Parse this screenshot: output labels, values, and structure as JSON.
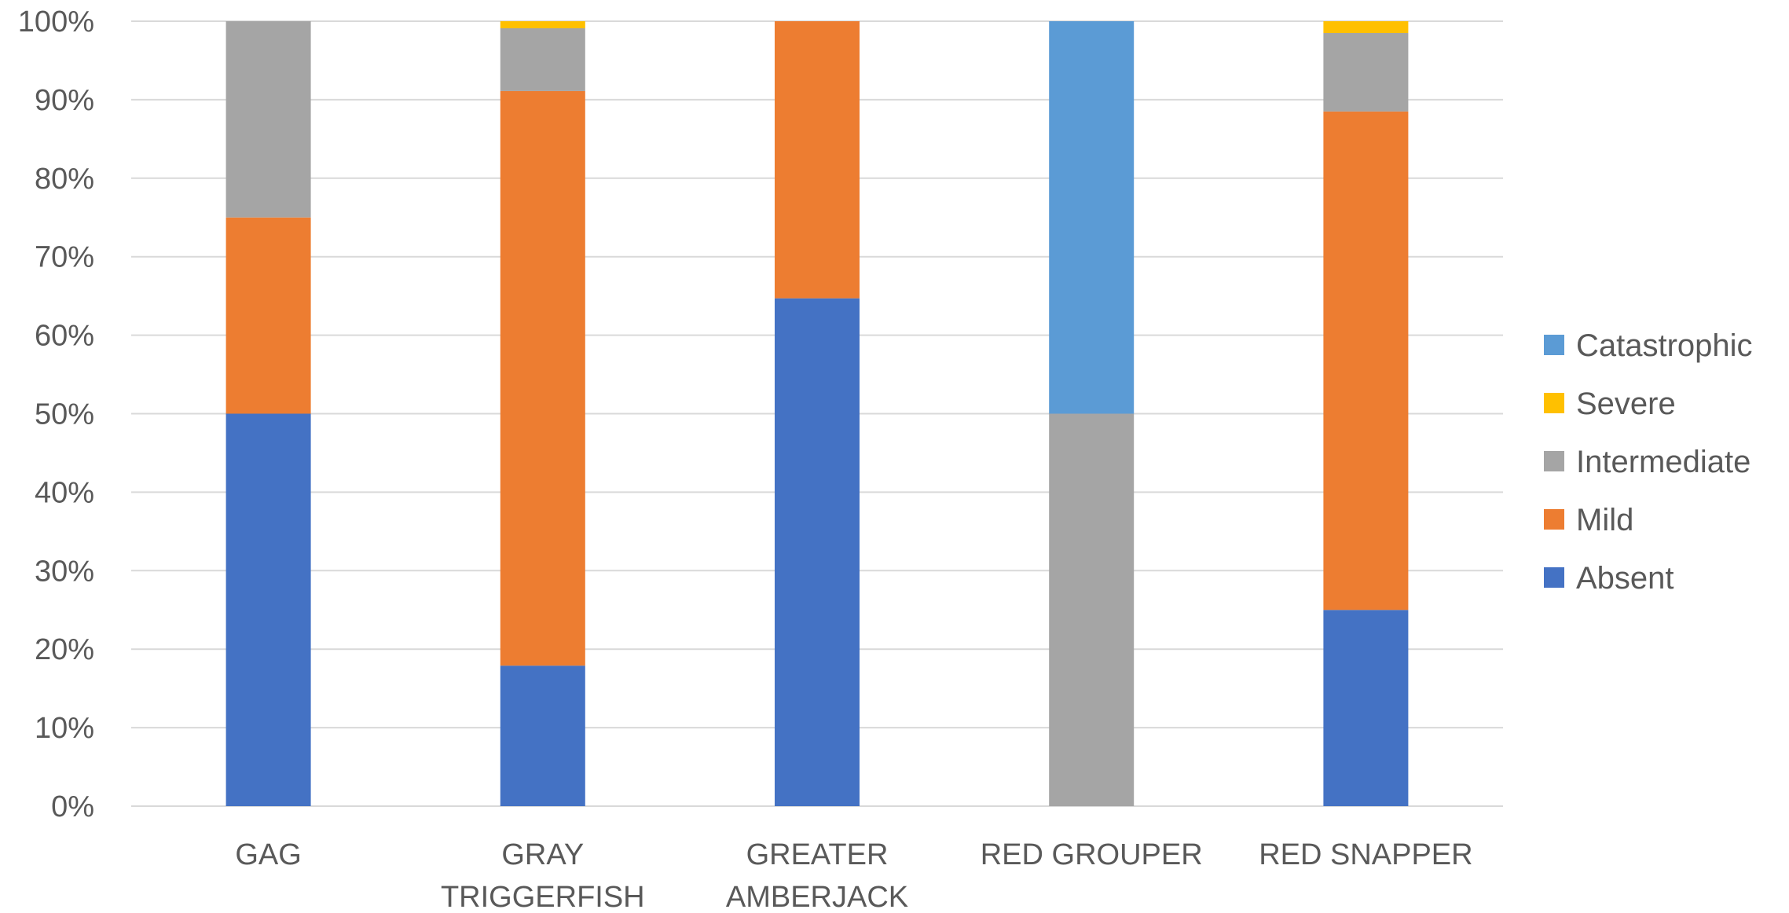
{
  "chart_data": {
    "type": "bar",
    "stacked": true,
    "percent_stacked": true,
    "categories": [
      [
        "GAG"
      ],
      [
        "GRAY",
        "TRIGGERFISH"
      ],
      [
        "GREATER",
        "AMBERJACK"
      ],
      [
        "RED GROUPER"
      ],
      [
        "RED SNAPPER"
      ]
    ],
    "series": [
      {
        "name": "Absent",
        "color": "#4472C4",
        "values": [
          50,
          17.9,
          64.7,
          0,
          25
        ]
      },
      {
        "name": "Mild",
        "color": "#ED7D31",
        "values": [
          25,
          73.2,
          35.3,
          0,
          63.5
        ]
      },
      {
        "name": "Intermediate",
        "color": "#A5A5A5",
        "values": [
          25,
          8.0,
          0,
          50,
          10
        ]
      },
      {
        "name": "Severe",
        "color": "#FFC000",
        "values": [
          0,
          0.9,
          0,
          0,
          1.5
        ]
      },
      {
        "name": "Catastrophic",
        "color": "#5B9BD5",
        "values": [
          0,
          0,
          0,
          50,
          0
        ]
      }
    ],
    "y_ticks": [
      "0%",
      "10%",
      "20%",
      "30%",
      "40%",
      "50%",
      "60%",
      "70%",
      "80%",
      "90%",
      "100%"
    ],
    "ylim": [
      0,
      100
    ],
    "title": "",
    "xlabel": "",
    "ylabel": "",
    "grid": true,
    "legend": {
      "placement": "right",
      "order": [
        "Catastrophic",
        "Severe",
        "Intermediate",
        "Mild",
        "Absent"
      ]
    },
    "colors": {
      "grid": "#D9D9D9",
      "text": "#595959"
    }
  }
}
